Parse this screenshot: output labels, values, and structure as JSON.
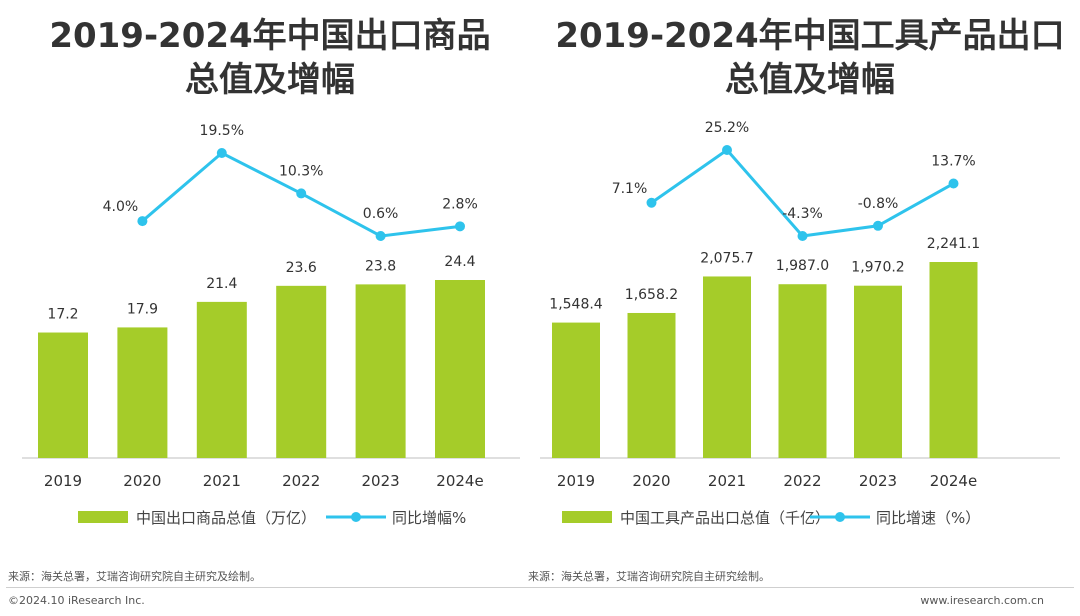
{
  "colors": {
    "bar": "#a5cc29",
    "line": "#2ec3ec",
    "axis": "#bfbfbf",
    "text": "#333333"
  },
  "chart_data": [
    {
      "type": "bar",
      "title_line1": "2019-2024年中国出口商品",
      "title_line2": "总值及增幅",
      "categories": [
        "2019",
        "2020",
        "2021",
        "2022",
        "2023",
        "2024e"
      ],
      "series": [
        {
          "name": "中国出口商品总值（万亿）",
          "type": "bar",
          "values": [
            17.2,
            17.9,
            21.4,
            23.6,
            23.8,
            24.4
          ],
          "labels": [
            "17.2",
            "17.9",
            "21.4",
            "23.6",
            "23.8",
            "24.4"
          ]
        },
        {
          "name": "同比增幅%",
          "type": "line",
          "values": [
            null,
            4.0,
            19.5,
            10.3,
            0.6,
            2.8
          ],
          "labels": [
            "",
            "4.0%",
            "19.5%",
            "10.3%",
            "0.6%",
            "2.8%"
          ]
        }
      ],
      "source": "来源：海关总署，艾瑞咨询研究院自主研究及绘制。"
    },
    {
      "type": "bar",
      "title_line1": "2019-2024年中国工具产品出口",
      "title_line2": "总值及增幅",
      "categories": [
        "2019",
        "2020",
        "2021",
        "2022",
        "2023",
        "2024e"
      ],
      "series": [
        {
          "name": "中国工具产品出口总值（千亿）",
          "type": "bar",
          "values": [
            1548.4,
            1658.2,
            2075.7,
            1987.0,
            1970.2,
            2241.1
          ],
          "labels": [
            "1,548.4",
            "1,658.2",
            "2,075.7",
            "1,987.0",
            "1,970.2",
            "2,241.1"
          ]
        },
        {
          "name": "同比增速（%）",
          "type": "line",
          "values": [
            null,
            7.1,
            25.2,
            -4.3,
            -0.8,
            13.7
          ],
          "labels": [
            "",
            "7.1%",
            "25.2%",
            "-4.3%",
            "-0.8%",
            "13.7%"
          ]
        }
      ],
      "source": "来源：海关总署，艾瑞咨询研究院自主研究绘制。"
    }
  ],
  "footer": {
    "copyright": "©2024.10 iResearch Inc.",
    "website": "www.iresearch.com.cn"
  }
}
